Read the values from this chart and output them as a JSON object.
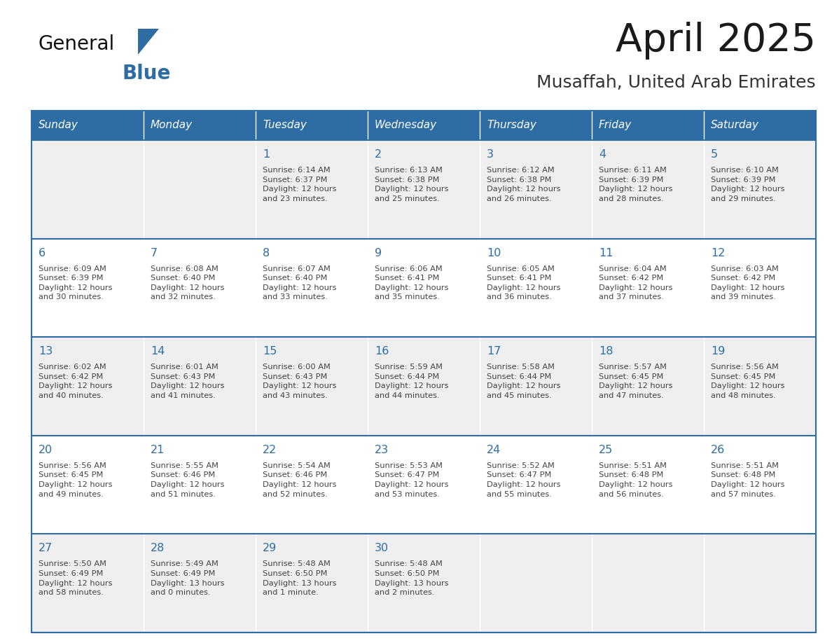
{
  "title": "April 2025",
  "subtitle": "Musaffah, United Arab Emirates",
  "header_color": "#2D6DA3",
  "header_text_color": "#FFFFFF",
  "cell_bg_even": "#EFEFEF",
  "cell_bg_odd": "#FFFFFF",
  "day_number_color": "#2D6DA3",
  "text_color": "#444444",
  "border_color": "#2D6DA3",
  "days_of_week": [
    "Sunday",
    "Monday",
    "Tuesday",
    "Wednesday",
    "Thursday",
    "Friday",
    "Saturday"
  ],
  "weeks": [
    [
      {
        "day": "",
        "info": ""
      },
      {
        "day": "",
        "info": ""
      },
      {
        "day": "1",
        "info": "Sunrise: 6:14 AM\nSunset: 6:37 PM\nDaylight: 12 hours\nand 23 minutes."
      },
      {
        "day": "2",
        "info": "Sunrise: 6:13 AM\nSunset: 6:38 PM\nDaylight: 12 hours\nand 25 minutes."
      },
      {
        "day": "3",
        "info": "Sunrise: 6:12 AM\nSunset: 6:38 PM\nDaylight: 12 hours\nand 26 minutes."
      },
      {
        "day": "4",
        "info": "Sunrise: 6:11 AM\nSunset: 6:39 PM\nDaylight: 12 hours\nand 28 minutes."
      },
      {
        "day": "5",
        "info": "Sunrise: 6:10 AM\nSunset: 6:39 PM\nDaylight: 12 hours\nand 29 minutes."
      }
    ],
    [
      {
        "day": "6",
        "info": "Sunrise: 6:09 AM\nSunset: 6:39 PM\nDaylight: 12 hours\nand 30 minutes."
      },
      {
        "day": "7",
        "info": "Sunrise: 6:08 AM\nSunset: 6:40 PM\nDaylight: 12 hours\nand 32 minutes."
      },
      {
        "day": "8",
        "info": "Sunrise: 6:07 AM\nSunset: 6:40 PM\nDaylight: 12 hours\nand 33 minutes."
      },
      {
        "day": "9",
        "info": "Sunrise: 6:06 AM\nSunset: 6:41 PM\nDaylight: 12 hours\nand 35 minutes."
      },
      {
        "day": "10",
        "info": "Sunrise: 6:05 AM\nSunset: 6:41 PM\nDaylight: 12 hours\nand 36 minutes."
      },
      {
        "day": "11",
        "info": "Sunrise: 6:04 AM\nSunset: 6:42 PM\nDaylight: 12 hours\nand 37 minutes."
      },
      {
        "day": "12",
        "info": "Sunrise: 6:03 AM\nSunset: 6:42 PM\nDaylight: 12 hours\nand 39 minutes."
      }
    ],
    [
      {
        "day": "13",
        "info": "Sunrise: 6:02 AM\nSunset: 6:42 PM\nDaylight: 12 hours\nand 40 minutes."
      },
      {
        "day": "14",
        "info": "Sunrise: 6:01 AM\nSunset: 6:43 PM\nDaylight: 12 hours\nand 41 minutes."
      },
      {
        "day": "15",
        "info": "Sunrise: 6:00 AM\nSunset: 6:43 PM\nDaylight: 12 hours\nand 43 minutes."
      },
      {
        "day": "16",
        "info": "Sunrise: 5:59 AM\nSunset: 6:44 PM\nDaylight: 12 hours\nand 44 minutes."
      },
      {
        "day": "17",
        "info": "Sunrise: 5:58 AM\nSunset: 6:44 PM\nDaylight: 12 hours\nand 45 minutes."
      },
      {
        "day": "18",
        "info": "Sunrise: 5:57 AM\nSunset: 6:45 PM\nDaylight: 12 hours\nand 47 minutes."
      },
      {
        "day": "19",
        "info": "Sunrise: 5:56 AM\nSunset: 6:45 PM\nDaylight: 12 hours\nand 48 minutes."
      }
    ],
    [
      {
        "day": "20",
        "info": "Sunrise: 5:56 AM\nSunset: 6:45 PM\nDaylight: 12 hours\nand 49 minutes."
      },
      {
        "day": "21",
        "info": "Sunrise: 5:55 AM\nSunset: 6:46 PM\nDaylight: 12 hours\nand 51 minutes."
      },
      {
        "day": "22",
        "info": "Sunrise: 5:54 AM\nSunset: 6:46 PM\nDaylight: 12 hours\nand 52 minutes."
      },
      {
        "day": "23",
        "info": "Sunrise: 5:53 AM\nSunset: 6:47 PM\nDaylight: 12 hours\nand 53 minutes."
      },
      {
        "day": "24",
        "info": "Sunrise: 5:52 AM\nSunset: 6:47 PM\nDaylight: 12 hours\nand 55 minutes."
      },
      {
        "day": "25",
        "info": "Sunrise: 5:51 AM\nSunset: 6:48 PM\nDaylight: 12 hours\nand 56 minutes."
      },
      {
        "day": "26",
        "info": "Sunrise: 5:51 AM\nSunset: 6:48 PM\nDaylight: 12 hours\nand 57 minutes."
      }
    ],
    [
      {
        "day": "27",
        "info": "Sunrise: 5:50 AM\nSunset: 6:49 PM\nDaylight: 12 hours\nand 58 minutes."
      },
      {
        "day": "28",
        "info": "Sunrise: 5:49 AM\nSunset: 6:49 PM\nDaylight: 13 hours\nand 0 minutes."
      },
      {
        "day": "29",
        "info": "Sunrise: 5:48 AM\nSunset: 6:50 PM\nDaylight: 13 hours\nand 1 minute."
      },
      {
        "day": "30",
        "info": "Sunrise: 5:48 AM\nSunset: 6:50 PM\nDaylight: 13 hours\nand 2 minutes."
      },
      {
        "day": "",
        "info": ""
      },
      {
        "day": "",
        "info": ""
      },
      {
        "day": "",
        "info": ""
      }
    ]
  ]
}
